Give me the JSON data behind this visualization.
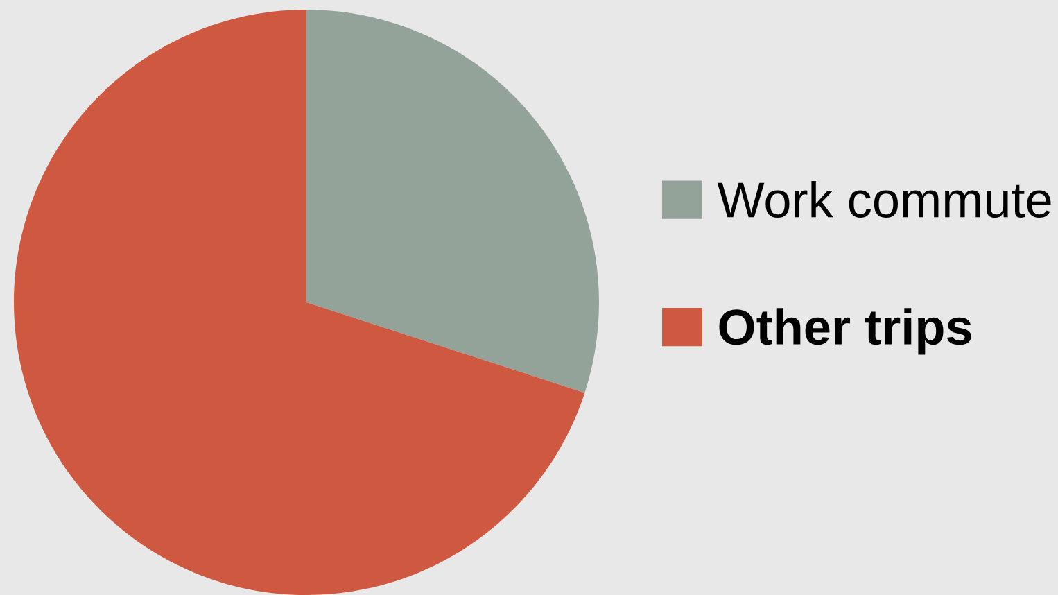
{
  "chart_data": {
    "type": "pie",
    "categories": [
      "Work commute",
      "Other trips"
    ],
    "values": [
      30,
      70
    ],
    "colors": [
      "#93a399",
      "#cf5840"
    ],
    "legend": "right"
  }
}
